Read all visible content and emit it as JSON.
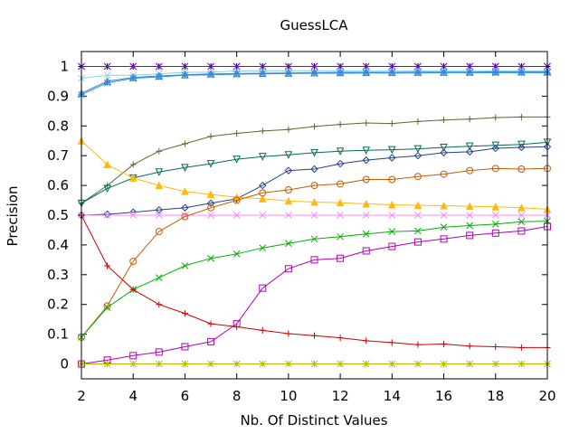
{
  "chart_data": {
    "type": "line",
    "title": "GuessLCA",
    "xlabel": "Nb. Of Distinct Values",
    "ylabel": "Precision",
    "xlim": [
      2,
      20
    ],
    "ylim": [
      -0.05,
      1.05
    ],
    "grid": false,
    "legend": "none",
    "x": [
      2,
      3,
      4,
      5,
      6,
      7,
      8,
      9,
      10,
      11,
      12,
      13,
      14,
      15,
      16,
      17,
      18,
      19,
      20
    ],
    "x_ticks": [
      2,
      4,
      6,
      8,
      10,
      12,
      14,
      16,
      18,
      20
    ],
    "x_tick_labels": [
      "2",
      "4",
      "6",
      "8",
      "10",
      "12",
      "14",
      "16",
      "18",
      "20"
    ],
    "y_ticks": [
      0,
      0.1,
      0.2,
      0.3,
      0.4,
      0.5,
      0.6,
      0.7,
      0.8,
      0.9,
      1
    ],
    "y_tick_labels": [
      "0",
      "0.1",
      "0.2",
      "0.3",
      "0.4",
      "0.5",
      "0.6",
      "0.7",
      "0.8",
      "0.9",
      "1"
    ],
    "series": [
      {
        "color": "#000000",
        "marker": "star",
        "values": [
          1,
          1,
          1,
          1,
          1,
          1,
          1,
          1,
          1,
          1,
          1,
          1,
          1,
          1,
          1,
          1,
          1,
          1,
          1
        ]
      },
      {
        "color": "#7f00ff",
        "marker": "x",
        "values": [
          1,
          1,
          1,
          1,
          1,
          1,
          1,
          1,
          1,
          1,
          1,
          1,
          1,
          1,
          1,
          1,
          1,
          1,
          1
        ]
      },
      {
        "color": "#87cefa",
        "marker": "x",
        "values": [
          0.96,
          0.97,
          0.97,
          0.975,
          0.98,
          0.98,
          0.985,
          0.985,
          0.985,
          0.985,
          0.985,
          0.985,
          0.985,
          0.985,
          0.985,
          0.985,
          0.985,
          0.985,
          0.985
        ]
      },
      {
        "color": "#1e90ff",
        "marker": "star",
        "values": [
          0.905,
          0.945,
          0.96,
          0.965,
          0.97,
          0.972,
          0.974,
          0.975,
          0.976,
          0.977,
          0.977,
          0.978,
          0.978,
          0.978,
          0.979,
          0.979,
          0.979,
          0.979,
          0.979
        ]
      },
      {
        "color": "#4682b4",
        "marker": "triangle",
        "values": [
          0.91,
          0.95,
          0.963,
          0.968,
          0.972,
          0.975,
          0.976,
          0.977,
          0.978,
          0.979,
          0.98,
          0.98,
          0.98,
          0.981,
          0.981,
          0.981,
          0.982,
          0.982,
          0.982
        ]
      },
      {
        "color": "#556b2f",
        "marker": "plus",
        "values": [
          0.54,
          0.6,
          0.67,
          0.715,
          0.74,
          0.765,
          0.775,
          0.783,
          0.788,
          0.798,
          0.805,
          0.81,
          0.808,
          0.815,
          0.82,
          0.823,
          0.828,
          0.83,
          0.83
        ]
      },
      {
        "color": "#006b5a",
        "marker": "triangle-down",
        "values": [
          0.54,
          0.59,
          0.625,
          0.645,
          0.66,
          0.673,
          0.688,
          0.697,
          0.703,
          0.71,
          0.715,
          0.718,
          0.72,
          0.723,
          0.728,
          0.732,
          0.735,
          0.738,
          0.745
        ]
      },
      {
        "color": "#27408b",
        "marker": "diamond",
        "values": [
          0.5,
          0.503,
          0.51,
          0.518,
          0.525,
          0.54,
          0.555,
          0.6,
          0.65,
          0.655,
          0.673,
          0.685,
          0.693,
          0.7,
          0.71,
          0.713,
          0.725,
          0.728,
          0.73
        ]
      },
      {
        "color": "#ffb90f",
        "marker": "triangle-filled",
        "values": [
          0.75,
          0.67,
          0.625,
          0.6,
          0.58,
          0.57,
          0.56,
          0.555,
          0.548,
          0.544,
          0.542,
          0.538,
          0.535,
          0.533,
          0.532,
          0.53,
          0.528,
          0.525,
          0.52
        ]
      },
      {
        "color": "#ff88ff",
        "marker": "x",
        "values": [
          0.5,
          0.5,
          0.5,
          0.5,
          0.5,
          0.5,
          0.5,
          0.5,
          0.5,
          0.5,
          0.5,
          0.5,
          0.5,
          0.5,
          0.5,
          0.5,
          0.5,
          0.5,
          0.5
        ]
      },
      {
        "color": "#c85a00",
        "marker": "circle",
        "values": [
          0.09,
          0.195,
          0.345,
          0.445,
          0.495,
          0.525,
          0.55,
          0.575,
          0.585,
          0.6,
          0.605,
          0.62,
          0.62,
          0.63,
          0.638,
          0.65,
          0.657,
          0.655,
          0.657
        ]
      },
      {
        "color": "#00b200",
        "marker": "x",
        "values": [
          0.09,
          0.19,
          0.25,
          0.29,
          0.33,
          0.355,
          0.37,
          0.39,
          0.405,
          0.42,
          0.428,
          0.437,
          0.445,
          0.447,
          0.46,
          0.465,
          0.47,
          0.478,
          0.48
        ]
      },
      {
        "color": "#b300b3",
        "marker": "square",
        "values": [
          0,
          0.013,
          0.028,
          0.04,
          0.058,
          0.075,
          0.135,
          0.255,
          0.32,
          0.35,
          0.355,
          0.38,
          0.395,
          0.41,
          0.42,
          0.432,
          0.44,
          0.447,
          0.462
        ]
      },
      {
        "color": "#cc0000",
        "marker": "plus",
        "values": [
          0.5,
          0.33,
          0.25,
          0.2,
          0.17,
          0.135,
          0.125,
          0.113,
          0.102,
          0.095,
          0.088,
          0.078,
          0.072,
          0.065,
          0.067,
          0.06,
          0.058,
          0.055,
          0.055
        ]
      },
      {
        "color": "#b5b500",
        "marker": "star",
        "values": [
          0,
          0,
          0,
          0,
          0,
          0,
          0,
          0,
          0,
          0,
          0,
          0,
          0,
          0,
          0,
          0,
          0,
          0,
          0
        ]
      }
    ]
  }
}
